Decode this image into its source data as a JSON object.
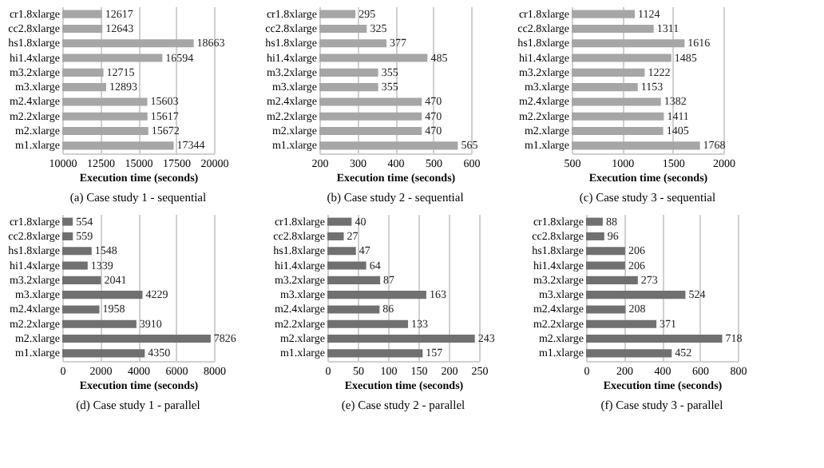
{
  "chart_data": [
    {
      "type": "bar",
      "orientation": "horizontal",
      "title": "(a) Case study 1 - sequential",
      "xlabel": "Execution time (seconds)",
      "categories": [
        "cr1.8xlarge",
        "cc2.8xlarge",
        "hs1.8xlarge",
        "hi1.4xlarge",
        "m3.2xlarge",
        "m3.xlarge",
        "m2.4xlarge",
        "m2.2xlarge",
        "m2.xlarge",
        "m1.xlarge"
      ],
      "values": [
        12617,
        12643,
        18663,
        16594,
        12715,
        12893,
        15603,
        15617,
        15672,
        17344
      ],
      "color": "#a6a6a6",
      "xlim": [
        10000,
        20000
      ],
      "xticks": [
        10000,
        12500,
        15000,
        17500,
        20000
      ],
      "grid": "x",
      "data_labels": true
    },
    {
      "type": "bar",
      "orientation": "horizontal",
      "title": "(b) Case study 2 - sequential",
      "xlabel": "Execution time (seconds)",
      "categories": [
        "cr1.8xlarge",
        "cc2.8xlarge",
        "hs1.8xlarge",
        "hi1.4xlarge",
        "m3.2xlarge",
        "m3.xlarge",
        "m2.4xlarge",
        "m2.2xlarge",
        "m2.xlarge",
        "m1.xlarge"
      ],
      "values": [
        295,
        325,
        377,
        485,
        355,
        355,
        470,
        470,
        470,
        565
      ],
      "color": "#a6a6a6",
      "xlim": [
        200,
        600
      ],
      "xticks": [
        200,
        300,
        400,
        500,
        600
      ],
      "grid": "x",
      "data_labels": true
    },
    {
      "type": "bar",
      "orientation": "horizontal",
      "title": "(c) Case study 3 - sequential",
      "xlabel": "Execution time (seconds)",
      "categories": [
        "cr1.8xlarge",
        "cc2.8xlarge",
        "hs1.8xlarge",
        "hi1.4xlarge",
        "m3.2xlarge",
        "m3.xlarge",
        "m2.4xlarge",
        "m2.2xlarge",
        "m2.xlarge",
        "m1.xlarge"
      ],
      "values": [
        1124,
        1311,
        1616,
        1485,
        1222,
        1153,
        1382,
        1411,
        1405,
        1768
      ],
      "color": "#a6a6a6",
      "xlim": [
        500,
        2000
      ],
      "xticks": [
        500,
        1000,
        1500,
        2000
      ],
      "grid": "x",
      "data_labels": true
    },
    {
      "type": "bar",
      "orientation": "horizontal",
      "title": "(d) Case study 1 - parallel",
      "xlabel": "Execution time (seconds)",
      "categories": [
        "cr1.8xlarge",
        "cc2.8xlarge",
        "hs1.8xlarge",
        "hi1.4xlarge",
        "m3.2xlarge",
        "m3.xlarge",
        "m2.4xlarge",
        "m2.2xlarge",
        "m2.xlarge",
        "m1.xlarge"
      ],
      "values": [
        554,
        559,
        1548,
        1339,
        2041,
        4229,
        1958,
        3910,
        7826,
        4350
      ],
      "color": "#707070",
      "xlim": [
        0,
        8000
      ],
      "xticks": [
        0,
        2000,
        4000,
        6000,
        8000
      ],
      "grid": "x",
      "data_labels": true
    },
    {
      "type": "bar",
      "orientation": "horizontal",
      "title": "(e) Case study 2 - parallel",
      "xlabel": "Execution time (seconds)",
      "categories": [
        "cr1.8xlarge",
        "cc2.8xlarge",
        "hs1.8xlarge",
        "hi1.4xlarge",
        "m3.2xlarge",
        "m3.xlarge",
        "m2.4xlarge",
        "m2.2xlarge",
        "m2.xlarge",
        "m1.xlarge"
      ],
      "values": [
        40,
        27,
        47,
        64,
        87,
        163,
        86,
        133,
        243,
        157
      ],
      "color": "#707070",
      "xlim": [
        0,
        250
      ],
      "xticks": [
        0,
        50,
        100,
        150,
        200,
        250
      ],
      "grid": "x",
      "data_labels": true
    },
    {
      "type": "bar",
      "orientation": "horizontal",
      "title": "(f) Case study 3 - parallel",
      "xlabel": "Execution time (seconds)",
      "categories": [
        "cr1.8xlarge",
        "cc2.8xlarge",
        "hs1.8xlarge",
        "hi1.4xlarge",
        "m3.2xlarge",
        "m3.xlarge",
        "m2.4xlarge",
        "m2.2xlarge",
        "m2.xlarge",
        "m1.xlarge"
      ],
      "values": [
        88,
        96,
        206,
        206,
        273,
        524,
        208,
        371,
        718,
        452
      ],
      "color": "#707070",
      "xlim": [
        0,
        800
      ],
      "xticks": [
        0,
        200,
        400,
        600,
        800
      ],
      "grid": "x",
      "data_labels": true
    }
  ]
}
